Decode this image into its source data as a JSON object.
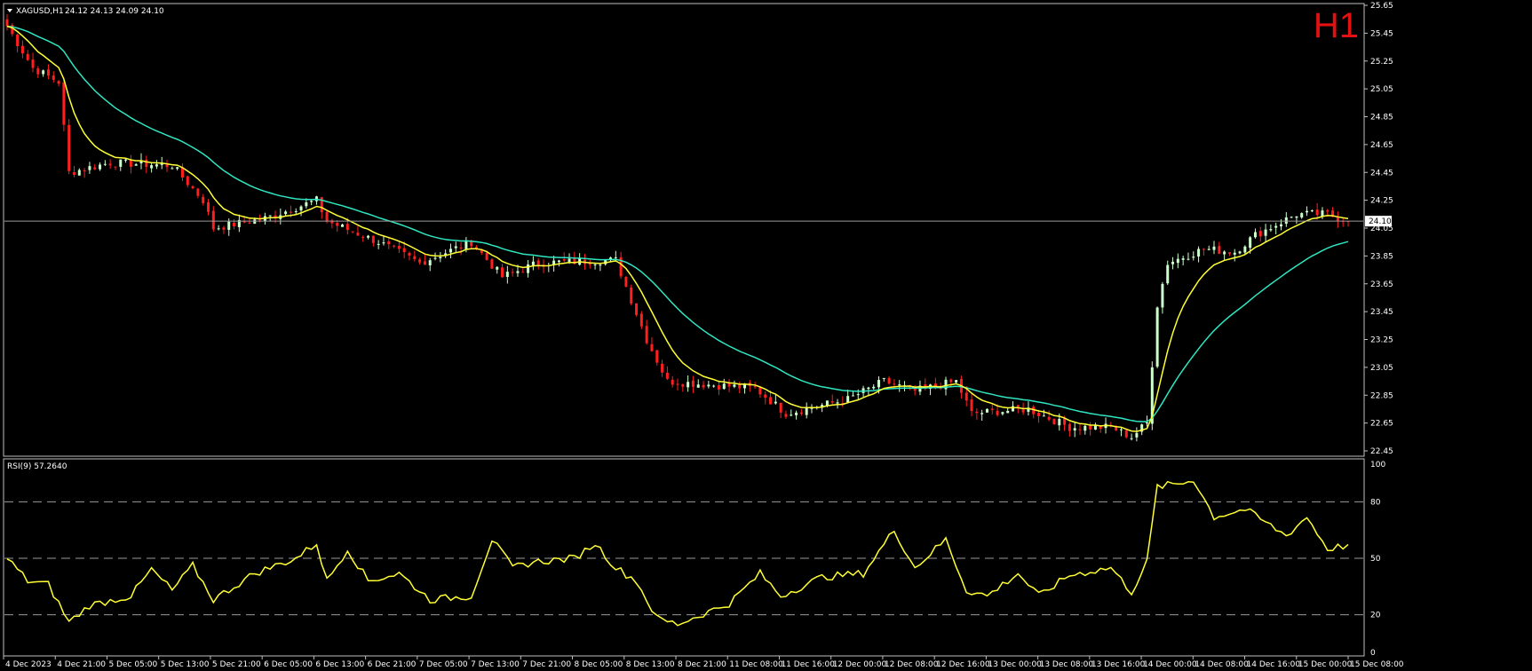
{
  "header": {
    "symbol_label": "XAGUSD,H1",
    "ohlc_label": "24.12 24.13 24.09 24.10",
    "timeframe_badge": "H1",
    "dropdown_icon": "triangle-down-icon"
  },
  "price_panel": {
    "y_ticks": [
      "25.65",
      "25.45",
      "25.25",
      "25.05",
      "24.85",
      "24.65",
      "24.45",
      "24.25",
      "24.05",
      "23.85",
      "23.65",
      "23.45",
      "23.25",
      "23.05",
      "22.85",
      "22.65",
      "22.45"
    ],
    "current_price_label": "24.10"
  },
  "rsi_panel": {
    "label": "RSI(9) 57.2640",
    "y_ticks": [
      "100",
      "80",
      "50",
      "20",
      "0"
    ]
  },
  "x_axis": {
    "labels": [
      "4 Dec 2023",
      "4 Dec 21:00",
      "5 Dec 05:00",
      "5 Dec 13:00",
      "5 Dec 21:00",
      "6 Dec 05:00",
      "6 Dec 13:00",
      "6 Dec 21:00",
      "7 Dec 05:00",
      "7 Dec 13:00",
      "7 Dec 21:00",
      "8 Dec 05:00",
      "8 Dec 13:00",
      "8 Dec 21:00",
      "11 Dec 08:00",
      "11 Dec 16:00",
      "12 Dec 00:00",
      "12 Dec 08:00",
      "12 Dec 16:00",
      "13 Dec 00:00",
      "13 Dec 08:00",
      "13 Dec 16:00",
      "14 Dec 00:00",
      "14 Dec 08:00",
      "14 Dec 16:00",
      "15 Dec 00:00",
      "15 Dec 08:00"
    ]
  },
  "colors": {
    "background": "#000000",
    "bull_candle": "#ccffcc",
    "bear_candle": "#ff1f1f",
    "ma_fast": "#ffff33",
    "ma_slow": "#2ee6c2",
    "rsi_line": "#ffff33",
    "frame": "#bfbfbf",
    "level_line": "#9a9a9a",
    "badge": "#e51010"
  },
  "chart_data": {
    "type": "candlestick",
    "symbol": "XAGUSD",
    "timeframe": "H1",
    "ylim": [
      22.45,
      25.65
    ],
    "rsi_levels": [
      20,
      50,
      80
    ],
    "rsi_ylim": [
      0,
      100
    ],
    "last_price": 24.1,
    "keypoints": [
      [
        0,
        25.5
      ],
      [
        5,
        25.2
      ],
      [
        10,
        25.1
      ],
      [
        12,
        24.45
      ],
      [
        20,
        24.52
      ],
      [
        32,
        24.5
      ],
      [
        38,
        24.25
      ],
      [
        40,
        24.05
      ],
      [
        50,
        24.12
      ],
      [
        60,
        24.25
      ],
      [
        62,
        24.1
      ],
      [
        72,
        23.95
      ],
      [
        80,
        23.8
      ],
      [
        90,
        23.95
      ],
      [
        96,
        23.7
      ],
      [
        103,
        23.8
      ],
      [
        118,
        23.82
      ],
      [
        124,
        23.25
      ],
      [
        128,
        22.95
      ],
      [
        145,
        22.9
      ],
      [
        151,
        22.72
      ],
      [
        163,
        22.82
      ],
      [
        170,
        22.95
      ],
      [
        176,
        22.88
      ],
      [
        184,
        22.95
      ],
      [
        187,
        22.72
      ],
      [
        198,
        22.75
      ],
      [
        206,
        22.62
      ],
      [
        214,
        22.62
      ],
      [
        218,
        22.55
      ],
      [
        221,
        22.65
      ],
      [
        223,
        23.5
      ],
      [
        225,
        23.8
      ],
      [
        232,
        23.9
      ],
      [
        238,
        23.88
      ],
      [
        242,
        24.0
      ],
      [
        250,
        24.15
      ],
      [
        256,
        24.15
      ],
      [
        260,
        24.1
      ]
    ],
    "rsi_keypoints": [
      [
        0,
        50
      ],
      [
        4,
        38
      ],
      [
        8,
        36
      ],
      [
        12,
        16
      ],
      [
        16,
        25
      ],
      [
        24,
        30
      ],
      [
        28,
        44
      ],
      [
        32,
        33
      ],
      [
        36,
        46
      ],
      [
        40,
        28
      ],
      [
        48,
        42
      ],
      [
        56,
        50
      ],
      [
        60,
        58
      ],
      [
        62,
        38
      ],
      [
        66,
        55
      ],
      [
        70,
        38
      ],
      [
        76,
        42
      ],
      [
        82,
        28
      ],
      [
        90,
        30
      ],
      [
        94,
        60
      ],
      [
        98,
        45
      ],
      [
        102,
        48
      ],
      [
        110,
        50
      ],
      [
        114,
        58
      ],
      [
        118,
        45
      ],
      [
        122,
        38
      ],
      [
        126,
        18
      ],
      [
        130,
        15
      ],
      [
        140,
        26
      ],
      [
        146,
        42
      ],
      [
        150,
        30
      ],
      [
        158,
        40
      ],
      [
        166,
        42
      ],
      [
        172,
        65
      ],
      [
        176,
        45
      ],
      [
        182,
        60
      ],
      [
        186,
        33
      ],
      [
        190,
        30
      ],
      [
        196,
        42
      ],
      [
        200,
        30
      ],
      [
        206,
        41
      ],
      [
        214,
        45
      ],
      [
        218,
        32
      ],
      [
        221,
        48
      ],
      [
        223,
        88
      ],
      [
        228,
        90
      ],
      [
        230,
        92
      ],
      [
        234,
        72
      ],
      [
        240,
        76
      ],
      [
        248,
        62
      ],
      [
        252,
        72
      ],
      [
        256,
        55
      ],
      [
        260,
        57
      ]
    ]
  }
}
